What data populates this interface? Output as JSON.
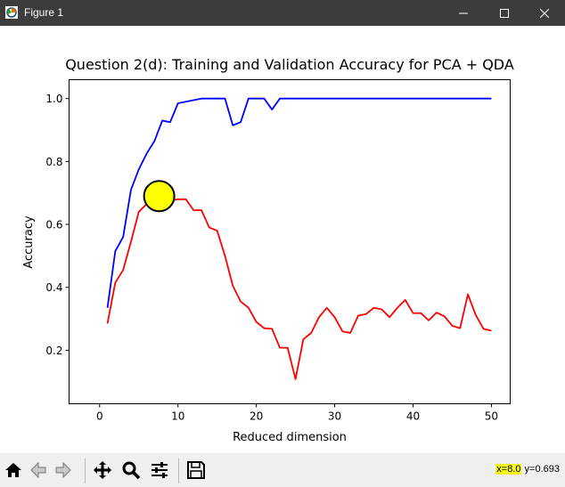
{
  "window": {
    "title": "Figure 1"
  },
  "toolbar": {
    "buttons": [
      {
        "name": "home-button",
        "icon": "home-icon"
      },
      {
        "name": "back-button",
        "icon": "back-arrow-icon"
      },
      {
        "name": "forward-button",
        "icon": "forward-arrow-icon"
      },
      {
        "name": "pan-button",
        "icon": "move-icon"
      },
      {
        "name": "zoom-button",
        "icon": "zoom-icon"
      },
      {
        "name": "configure-subplots-button",
        "icon": "sliders-icon"
      },
      {
        "name": "save-button",
        "icon": "save-icon"
      }
    ],
    "coords": {
      "x_text": "x=8.0",
      "y_text": "y=0.693"
    }
  },
  "colors": {
    "train": "#0000ff",
    "val": "#ff0000",
    "highlight": "#ffff00"
  },
  "chart_data": {
    "type": "line",
    "title": "Question 2(d): Training and Validation Accuracy for PCA + QDA",
    "xlabel": "Reduced dimension",
    "ylabel": "Accuracy",
    "xlim": [
      -3.9,
      52.4
    ],
    "ylim": [
      0.03,
      1.06
    ],
    "xticks": [
      0,
      10,
      20,
      30,
      40,
      50
    ],
    "yticks": [
      0.2,
      0.4,
      0.6,
      0.8,
      1.0
    ],
    "ytick_labels": [
      "0.2",
      "0.4",
      "0.6",
      "0.8",
      "1.0"
    ],
    "grid": false,
    "x": [
      1,
      2,
      3,
      4,
      5,
      6,
      7,
      8,
      9,
      10,
      11,
      12,
      13,
      14,
      15,
      16,
      17,
      18,
      19,
      20,
      21,
      22,
      23,
      24,
      25,
      26,
      27,
      28,
      29,
      30,
      31,
      32,
      33,
      34,
      35,
      36,
      37,
      38,
      39,
      40,
      41,
      42,
      43,
      44,
      45,
      46,
      47,
      48,
      49,
      50
    ],
    "series": [
      {
        "color": "#0000ff",
        "values": [
          0.335,
          0.515,
          0.56,
          0.71,
          0.775,
          0.825,
          0.865,
          0.93,
          0.925,
          0.985,
          0.99,
          0.995,
          1.0,
          1.0,
          1.0,
          1.0,
          0.915,
          0.925,
          1.0,
          1.0,
          1.0,
          0.965,
          1.0,
          1.0,
          1.0,
          1.0,
          1.0,
          1.0,
          1.0,
          1.0,
          1.0,
          1.0,
          1.0,
          1.0,
          1.0,
          1.0,
          1.0,
          1.0,
          1.0,
          1.0,
          1.0,
          1.0,
          1.0,
          1.0,
          1.0,
          1.0,
          1.0,
          1.0,
          1.0,
          1.0
        ]
      },
      {
        "color": "#ff0000",
        "values": [
          0.285,
          0.415,
          0.455,
          0.545,
          0.64,
          0.665,
          0.69,
          0.695,
          0.675,
          0.68,
          0.68,
          0.645,
          0.645,
          0.59,
          0.58,
          0.5,
          0.405,
          0.355,
          0.335,
          0.29,
          0.27,
          0.268,
          0.208,
          0.208,
          0.108,
          0.235,
          0.255,
          0.305,
          0.335,
          0.305,
          0.26,
          0.255,
          0.31,
          0.315,
          0.335,
          0.33,
          0.305,
          0.335,
          0.36,
          0.318,
          0.318,
          0.295,
          0.32,
          0.308,
          0.278,
          0.27,
          0.378,
          0.312,
          0.268,
          0.262
        ]
      }
    ],
    "annotation": {
      "type": "circle-marker",
      "x": 7.6,
      "y": 0.69,
      "color": "#ffff00"
    }
  }
}
